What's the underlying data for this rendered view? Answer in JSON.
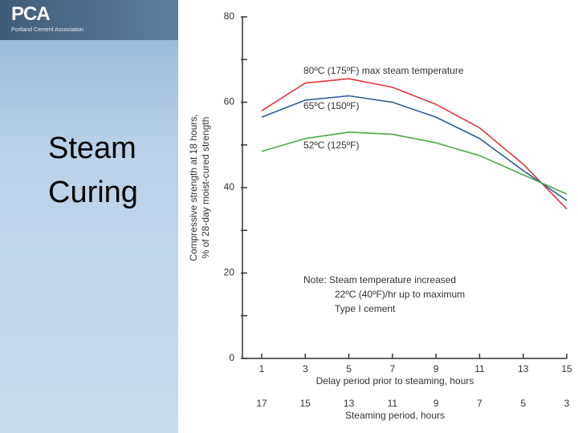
{
  "header": {
    "logo": "PCA",
    "organization": "Portland Cement Association"
  },
  "slide_title_lines": [
    "Steam",
    "Curing"
  ],
  "chart_data": {
    "type": "line",
    "y_label_lines": [
      "Compressive strength at 18 hours,",
      "% of 28-day moist-cured strength"
    ],
    "x_label": "Delay period prior to steaming, hours",
    "x2_label": "Steaming period, hours",
    "note_lines": [
      "Note: Steam temperature increased",
      "22ºC (40ºF)/hr up to maximum",
      "Type I cement"
    ],
    "x": [
      1,
      3,
      5,
      7,
      9,
      11,
      13,
      15
    ],
    "xlim": [
      1,
      15
    ],
    "xticks": [
      1,
      3,
      5,
      7,
      9,
      11,
      13,
      15
    ],
    "x2lim": [
      17,
      3
    ],
    "x2ticks": [
      17,
      15,
      13,
      11,
      9,
      7,
      5,
      3
    ],
    "ylim": [
      0,
      80
    ],
    "yticks": [
      0,
      20,
      40,
      60,
      80
    ],
    "yminor_ticks": [
      10,
      30,
      50,
      70
    ],
    "series": [
      {
        "name": "80ºC (175ºF) max steam temperature",
        "color": "#e0383c",
        "values": [
          58,
          64.5,
          65.5,
          63.5,
          59.5,
          54,
          45.5,
          35
        ]
      },
      {
        "name": "65ºC (150ºF)",
        "color": "#2d5b96",
        "values": [
          56.5,
          60.5,
          61.5,
          60,
          56.5,
          51.5,
          44,
          37
        ]
      },
      {
        "name": "52ºC (125ºF)",
        "color": "#4caa48",
        "values": [
          48.5,
          51.5,
          53,
          52.5,
          50.5,
          47.5,
          43,
          38.5
        ]
      }
    ]
  }
}
